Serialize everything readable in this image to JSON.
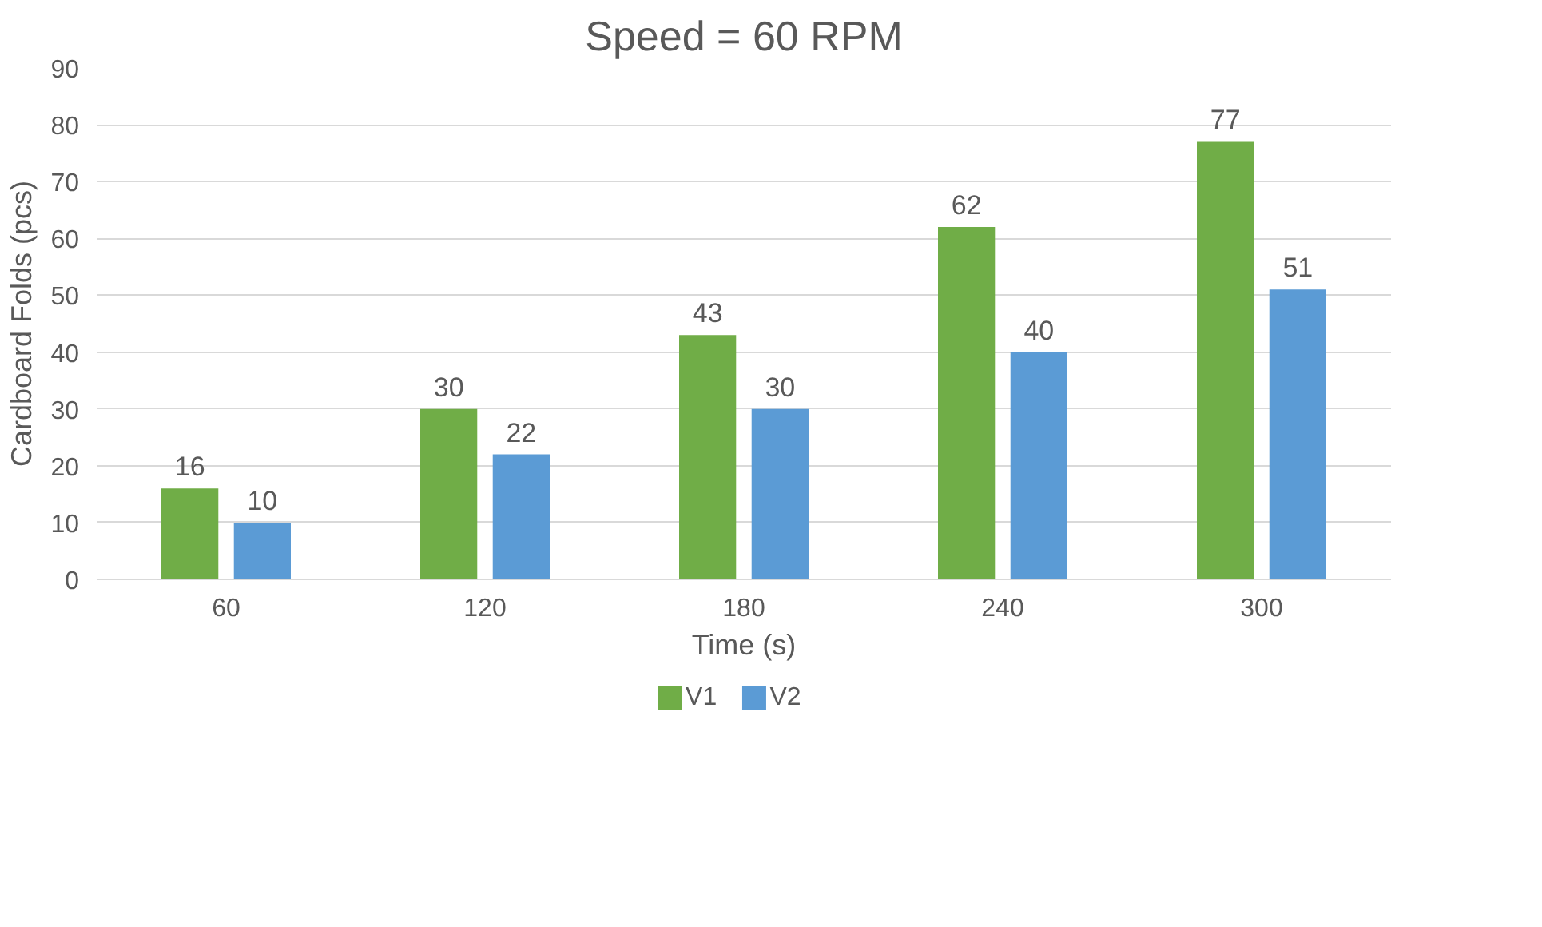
{
  "chart_data": {
    "type": "bar",
    "title": "Speed = 60 RPM",
    "xlabel": "Time (s)",
    "ylabel": "Cardboard Folds (pcs)",
    "categories": [
      "60",
      "120",
      "180",
      "240",
      "300"
    ],
    "series": [
      {
        "name": "V1",
        "color": "#70ad47",
        "values": [
          16,
          30,
          43,
          62,
          77
        ]
      },
      {
        "name": "V2",
        "color": "#5b9bd5",
        "values": [
          10,
          22,
          30,
          40,
          51
        ]
      }
    ],
    "ylim": [
      0,
      90
    ],
    "yticks": [
      0,
      10,
      20,
      30,
      40,
      50,
      60,
      70,
      80,
      90
    ],
    "grid": "y",
    "legend": "bottom",
    "data_labels": true
  }
}
